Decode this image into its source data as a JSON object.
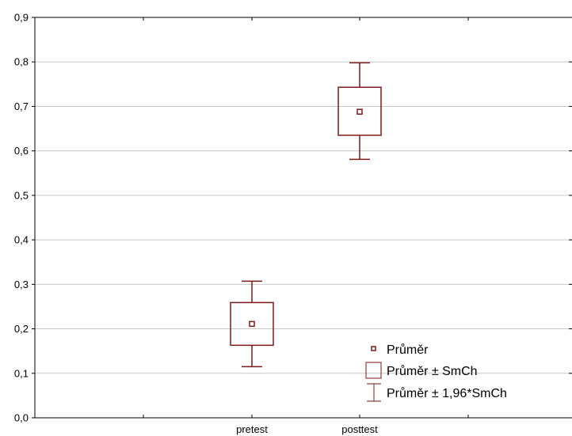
{
  "chart_data": {
    "type": "box",
    "categories": [
      "pretest",
      "posttest"
    ],
    "series": [
      {
        "category": "pretest",
        "mean": 0.211,
        "se_low": 0.163,
        "se_high": 0.259,
        "ci_low": 0.115,
        "ci_high": 0.307
      },
      {
        "category": "posttest",
        "mean": 0.688,
        "se_low": 0.635,
        "se_high": 0.743,
        "ci_low": 0.581,
        "ci_high": 0.798
      }
    ],
    "yticks": [
      "0,0",
      "0,1",
      "0,2",
      "0,3",
      "0,4",
      "0,5",
      "0,6",
      "0,7",
      "0,8",
      "0,9"
    ],
    "ylim": [
      0,
      0.9
    ],
    "grid": true,
    "legend_position": "bottom-right",
    "legend": [
      {
        "symbol": "mean-marker",
        "label": "Průměr"
      },
      {
        "symbol": "box",
        "label": "Průměr ± SmCh"
      },
      {
        "symbol": "whisker",
        "label": "Průměr ± 1,96*SmCh"
      }
    ],
    "colors": {
      "series": "#7a1a1a",
      "grid": "#c8c8c8",
      "axis": "#000000"
    }
  }
}
